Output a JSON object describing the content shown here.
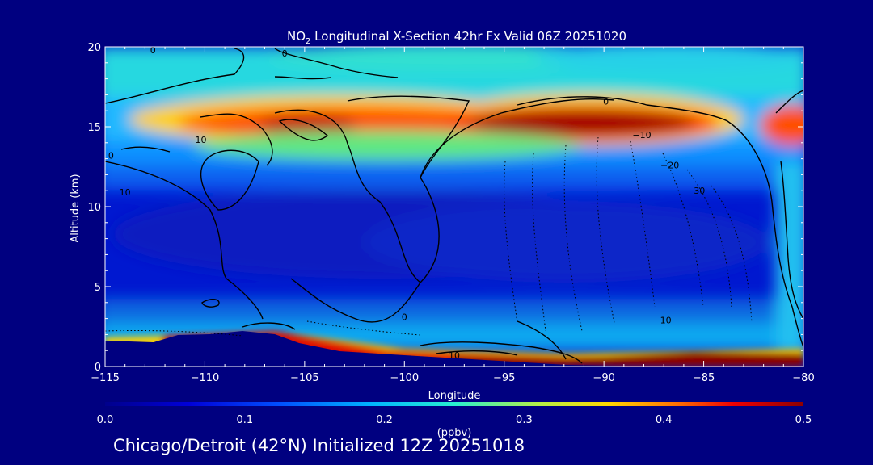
{
  "chart_data": {
    "type": "heatmap",
    "title": "NO2 Longitudinal X-Section 42hr  Fx Valid 06Z 20251020",
    "title_parts": {
      "pre": "NO",
      "sub": "2",
      "post": " Longitudinal X-Section 42hr  Fx Valid 06Z 20251020"
    },
    "xlabel": "Longitude",
    "ylabel": "Altitude (km)",
    "xlim": [
      -115,
      -80
    ],
    "ylim": [
      0,
      20
    ],
    "x_ticks": [
      -115,
      -110,
      -105,
      -100,
      -95,
      -90,
      -85,
      -80
    ],
    "y_ticks": [
      0,
      5,
      10,
      15,
      20
    ],
    "colorbar": {
      "label": "(ppbv)",
      "range": [
        0.0,
        0.5
      ],
      "ticks": [
        "0.0",
        "0.1",
        "0.2",
        "0.3",
        "0.4",
        "0.5"
      ]
    },
    "field_features": [
      {
        "feature": "upper tropospheric maximum",
        "lon_range": [
          -106,
          -86
        ],
        "alt_km": 15,
        "value_ppbv": 0.5
      },
      {
        "feature": "boundary layer maximum",
        "lon_range": [
          -102,
          -80
        ],
        "alt_km": 0.5,
        "value_ppbv": 0.5
      },
      {
        "feature": "mid-troposphere minimum",
        "lon_range": [
          -112,
          -85
        ],
        "alt_km": 7,
        "value_ppbv": 0.07
      }
    ],
    "contour_labels": [
      {
        "text": "0",
        "lon": -112.6,
        "alt": 19.8
      },
      {
        "text": "0",
        "lon": -106,
        "alt": 19.6
      },
      {
        "text": "0",
        "lon": -89.9,
        "alt": 16.6
      },
      {
        "text": "10",
        "lon": -110.2,
        "alt": 14.2
      },
      {
        "text": "0",
        "lon": -114.7,
        "alt": 13.2
      },
      {
        "text": "10",
        "lon": -114,
        "alt": 10.9
      },
      {
        "text": "-10",
        "lon": -88.1,
        "alt": 14.5
      },
      {
        "text": "-20",
        "lon": -86.7,
        "alt": 12.6
      },
      {
        "text": "-30",
        "lon": -85.4,
        "alt": 11
      },
      {
        "text": "0",
        "lon": -100,
        "alt": 3.1
      },
      {
        "text": "10",
        "lon": -97.5,
        "alt": 0.7
      },
      {
        "text": "10",
        "lon": -86.9,
        "alt": 2.9
      }
    ]
  },
  "footer": "Chicago/Detroit (42°N) Initialized 12Z 20251018",
  "colors": {
    "background": "#000080",
    "text": "#ffffff",
    "contour": "#000000"
  }
}
